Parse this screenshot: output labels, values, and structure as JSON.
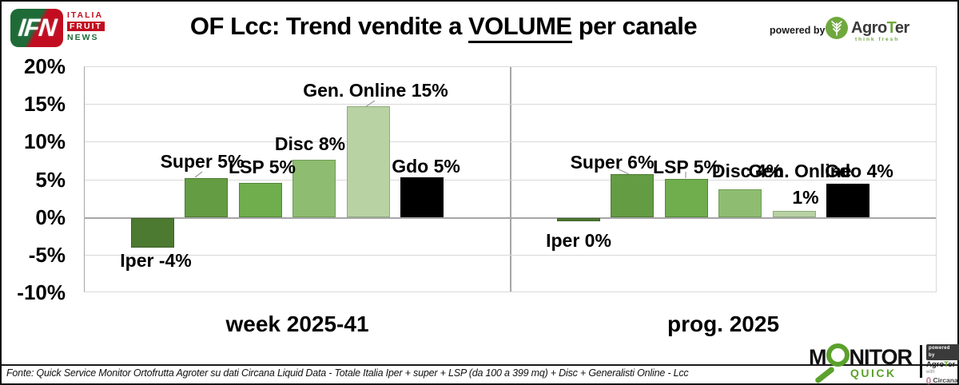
{
  "header": {
    "ifn_logo": {
      "acronym": "IFN",
      "line1": "ITALIA",
      "line2": "FRUIT",
      "line3": "NEWS"
    },
    "title": {
      "prefix": "OF Lcc: Trend vendite a ",
      "underlined": "VOLUME",
      "suffix": " per canale"
    },
    "powered_by": {
      "label": "powered by",
      "brand_pre": "Agro",
      "brand_t": "T",
      "brand_post": "er",
      "tagline": "think fresh"
    }
  },
  "chart_data": {
    "type": "bar",
    "title": "OF Lcc: Trend vendite a VOLUME per canale",
    "xlabel": "",
    "ylabel": "",
    "ylim": [
      -10,
      20
    ],
    "ytick_step_pct": 5,
    "yticks": [
      "20%",
      "15%",
      "10%",
      "5%",
      "0%",
      "-5%",
      "-10%"
    ],
    "grid": true,
    "legend": false,
    "groups": [
      {
        "category": "week 2025-41",
        "bars": [
          {
            "name": "Iper",
            "value": -4,
            "label": "Iper -4%",
            "drawn": -4.0
          },
          {
            "name": "Super",
            "value": 5,
            "label": "Super 5%",
            "drawn": 5.2
          },
          {
            "name": "LSP",
            "value": 5,
            "label": "LSP 5%",
            "drawn": 4.5
          },
          {
            "name": "Disc",
            "value": 8,
            "label": "Disc 8%",
            "drawn": 7.6
          },
          {
            "name": "Gen. Online",
            "value": 15,
            "label": "Gen. Online 15%",
            "drawn": 14.7
          },
          {
            "name": "Gdo",
            "value": 5,
            "label": "Gdo 5%",
            "drawn": 5.3
          }
        ]
      },
      {
        "category": "prog. 2025",
        "bars": [
          {
            "name": "Iper",
            "value": 0,
            "label": "Iper 0%",
            "drawn": -0.5
          },
          {
            "name": "Super",
            "value": 6,
            "label": "Super 6%",
            "drawn": 5.7
          },
          {
            "name": "LSP",
            "value": 5,
            "label": "LSP 5%",
            "drawn": 5.1
          },
          {
            "name": "Disc",
            "value": 4,
            "label": "Disc 4%",
            "drawn": 3.7
          },
          {
            "name": "Gen. Online",
            "value": 1,
            "label": "Gen. Online",
            "label_line2": "1%",
            "drawn": 0.8
          },
          {
            "name": "Gdo",
            "value": 4,
            "label": "Gdo 4%",
            "drawn": 4.4
          }
        ]
      }
    ],
    "bar_colors": [
      "#4d7a31",
      "#649c43",
      "#6fad4d",
      "#8ebd71",
      "#b8d2a3",
      "#000000"
    ],
    "bar_border_colors": [
      "#3c6125",
      "#4d7a31",
      "#558538",
      "#6f9e53",
      "#90ab7e",
      "#000000"
    ],
    "gridline_color": "#d9d9d9",
    "zero_line_color": "#a6a6a6"
  },
  "footer": {
    "source": "Fonte: Quick Service Monitor Ortofrutta Agroter su dati Circana Liquid Data - Totale Italia Iper + super + LSP (da 100 a 399 mq) + Disc + Generalisti Online - Lcc",
    "monitor_logo": {
      "word_pre": "M",
      "word_post": "NITOR",
      "sub": "QUICK",
      "powered_by": "powered by",
      "agroter_pre": "Agro",
      "agroter_t": "T",
      "agroter_post": "er",
      "with_label": "with",
      "circana": "Circana."
    }
  }
}
